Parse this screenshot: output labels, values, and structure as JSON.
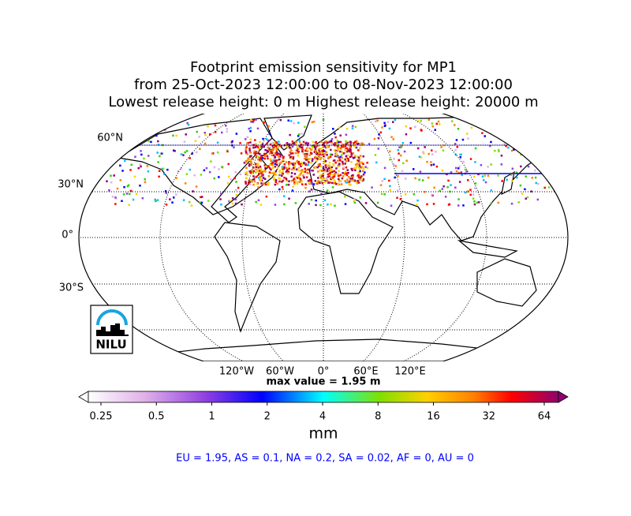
{
  "title": [
    "Footprint emission sensitivity for MP1",
    "from 25-Oct-2023 12:00:00 to 08-Nov-2023 12:00:00",
    "Lowest release height: 0 m      Highest release height: 20000 m"
  ],
  "map": {
    "lat_labels": [
      "60°N",
      "30°N",
      "0°",
      "30°S"
    ],
    "lon_labels": [
      "120°W",
      "60°W",
      "0°",
      "60°E",
      "120°E"
    ],
    "logo": "NILU"
  },
  "max_value": "max value = 1.95 m",
  "colorbar": {
    "ticks": [
      0.25,
      0.5,
      1,
      2,
      4,
      8,
      16,
      32,
      64
    ],
    "range": [
      0.25,
      64
    ],
    "scale": "log",
    "label": "mm"
  },
  "summary": "EU = 1.95,  AS = 0.1,  NA = 0.2,  SA = 0.02,  AF = 0,  AU = 0"
}
